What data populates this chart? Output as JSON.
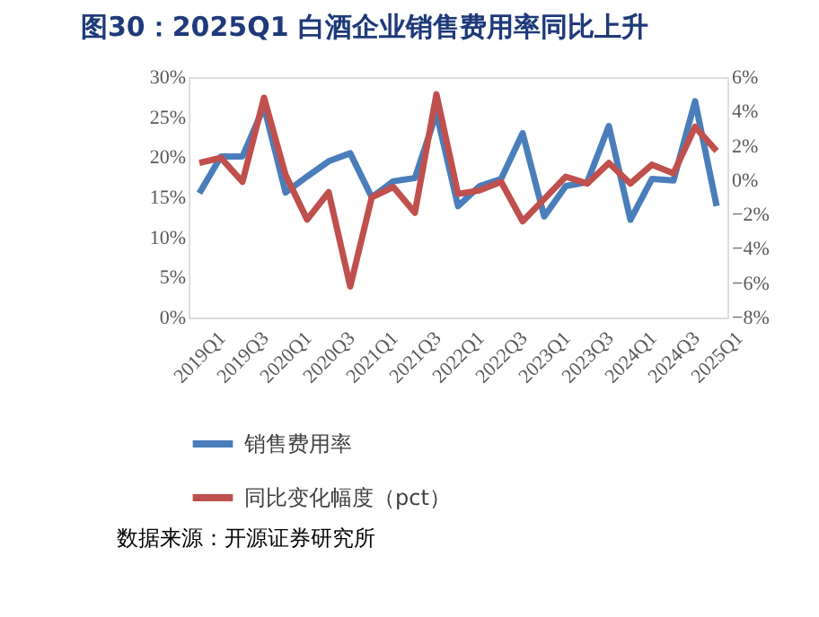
{
  "chart_data": {
    "type": "line",
    "title": "图30：2025Q1 白酒企业销售费用率同比上升",
    "categories": [
      "2019Q1",
      null,
      "2019Q3",
      null,
      "2020Q1",
      null,
      "2020Q3",
      null,
      "2021Q1",
      null,
      "2021Q3",
      null,
      "2022Q1",
      null,
      "2022Q3",
      null,
      "2023Q1",
      null,
      "2023Q3",
      null,
      "2024Q1",
      null,
      "2024Q3",
      null,
      "2025Q1"
    ],
    "series": [
      {
        "name": "销售费用率",
        "color": "#4a7ebb",
        "values": [
          15.5,
          20.1,
          20.1,
          26.3,
          15.6,
          17.6,
          19.5,
          20.5,
          15.0,
          17.0,
          17.4,
          25.5,
          13.9,
          16.4,
          17.3,
          23.0,
          12.6,
          16.4,
          16.9,
          23.9,
          12.2,
          17.3,
          17.1,
          27.0,
          13.9
        ]
      },
      {
        "name": "同比变化幅度（pct）",
        "color": "#c0504d",
        "axis": "y2",
        "values": [
          1.0,
          1.3,
          -0.1,
          4.8,
          0.3,
          -2.3,
          -0.7,
          -6.2,
          -1.0,
          -0.4,
          -1.9,
          5.0,
          -0.8,
          -0.6,
          -0.1,
          -2.4,
          -1.1,
          0.2,
          -0.2,
          1.0,
          -0.2,
          0.9,
          0.4,
          3.1,
          1.7
        ]
      }
    ],
    "ylim": [
      0,
      30
    ],
    "yticks": [
      {
        "value": 0,
        "label": "0%"
      },
      {
        "value": 5,
        "label": "5%"
      },
      {
        "value": 10,
        "label": "10%"
      },
      {
        "value": 15,
        "label": "15%"
      },
      {
        "value": 20,
        "label": "20%"
      },
      {
        "value": 25,
        "label": "25%"
      },
      {
        "value": 30,
        "label": "30%"
      }
    ],
    "y2lim": [
      -8,
      6
    ],
    "y2ticks": [
      {
        "value": -8,
        "label": "−8%"
      },
      {
        "value": -6,
        "label": "−6%"
      },
      {
        "value": -4,
        "label": "−4%"
      },
      {
        "value": -2,
        "label": "−2%"
      },
      {
        "value": 0,
        "label": "0%"
      },
      {
        "value": 2,
        "label": "2%"
      },
      {
        "value": 4,
        "label": "4%"
      },
      {
        "value": 6,
        "label": "6%"
      }
    ],
    "grid": false,
    "legend": "bottom",
    "marker": "none",
    "line_style": "solid",
    "annotations": [
      "数据来源：开源证券研究所"
    ]
  }
}
